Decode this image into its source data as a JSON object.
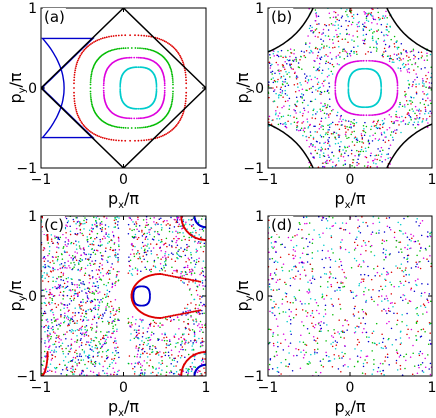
{
  "chart_data": [
    {
      "type": "scatter",
      "panel_label": "(a)",
      "xlabel": "px/π",
      "ylabel": "py/π",
      "xlim": [
        -1,
        1
      ],
      "ylim": [
        -1,
        1
      ],
      "xticks": [
        "−1",
        "0",
        "1"
      ],
      "yticks": [
        "1",
        "0",
        "−1"
      ],
      "boundary": "diamond",
      "description_colors": {
        "boundary": "#000000"
      },
      "curves": [
        {
          "kind": "blue-lens",
          "color": "#0000cc",
          "x": [
            -0.98,
            -0.72
          ],
          "y": [
            -0.6,
            0.6
          ]
        },
        {
          "kind": "closed-loop",
          "color": "#dd0000",
          "center": [
            0.08,
            0.0
          ],
          "rx": 0.68,
          "ry": 0.66
        },
        {
          "kind": "closed-loop",
          "color": "#00bb00",
          "center": [
            0.1,
            0.0
          ],
          "rx": 0.5,
          "ry": 0.5
        },
        {
          "kind": "closed-loop",
          "color": "#dd00dd",
          "center": [
            0.13,
            0.0
          ],
          "rx": 0.37,
          "ry": 0.38
        },
        {
          "kind": "closed-loop",
          "color": "#00cccc",
          "center": [
            0.18,
            0.0
          ],
          "rx": 0.22,
          "ry": 0.26
        }
      ]
    },
    {
      "type": "scatter",
      "panel_label": "(b)",
      "xlabel": "px/π",
      "ylabel": "py/π",
      "xlim": [
        -1,
        1
      ],
      "ylim": [
        -1,
        1
      ],
      "xticks": [
        "−1",
        "0",
        "1"
      ],
      "yticks": [
        "1",
        "0",
        "−1"
      ],
      "boundary": "hyperbolic-corners",
      "curves": [
        {
          "kind": "closed-loop",
          "color": "#dd00dd",
          "center": [
            0.2,
            0.0
          ],
          "rx": 0.38,
          "ry": 0.34
        },
        {
          "kind": "closed-loop",
          "color": "#00cccc",
          "center": [
            0.18,
            0.0
          ],
          "rx": 0.2,
          "ry": 0.24
        }
      ],
      "scatter_region": "annulus-chaotic"
    },
    {
      "type": "scatter",
      "panel_label": "(c)",
      "xlabel": "px/π",
      "ylabel": "py/π",
      "xlim": [
        -1,
        1
      ],
      "ylim": [
        -1,
        1
      ],
      "xticks": [
        "−1",
        "0",
        "1"
      ],
      "yticks": [
        "1",
        "0",
        "−1"
      ],
      "curves": [
        {
          "kind": "closed-loop",
          "color": "#0000cc",
          "center": [
            0.22,
            0.0
          ],
          "rx": 0.1,
          "ry": 0.12
        },
        {
          "kind": "half-loop",
          "color": "#dd0000",
          "center": [
            0.45,
            0.0
          ],
          "rx": 0.32,
          "ry": 0.22
        },
        {
          "kind": "corner-arc",
          "color": "#0000cc",
          "corner": [
            1,
            1
          ]
        },
        {
          "kind": "corner-arc",
          "color": "#dd0000",
          "corner": [
            1,
            1
          ]
        },
        {
          "kind": "corner-arc",
          "color": "#0000cc",
          "corner": [
            1,
            -1
          ]
        },
        {
          "kind": "corner-arc",
          "color": "#dd0000",
          "corner": [
            1,
            -1
          ]
        },
        {
          "kind": "edge-arc",
          "color": "#dd0000",
          "corner": [
            -1,
            1
          ]
        },
        {
          "kind": "edge-arc",
          "color": "#dd0000",
          "corner": [
            -1,
            -1
          ]
        }
      ],
      "scatter_region": "full-chaotic"
    },
    {
      "type": "scatter",
      "panel_label": "(d)",
      "xlabel": "px/π",
      "ylabel": "py/π",
      "xlim": [
        -1,
        1
      ],
      "ylim": [
        -1,
        1
      ],
      "xticks": [
        "−1",
        "0",
        "1"
      ],
      "yticks": [
        "1",
        "0",
        "−1"
      ],
      "curves": [],
      "scatter_region": "sparse-chaotic"
    }
  ],
  "series_colors": [
    "#0000cc",
    "#dd0000",
    "#00bb00",
    "#dd00dd",
    "#00cccc"
  ]
}
